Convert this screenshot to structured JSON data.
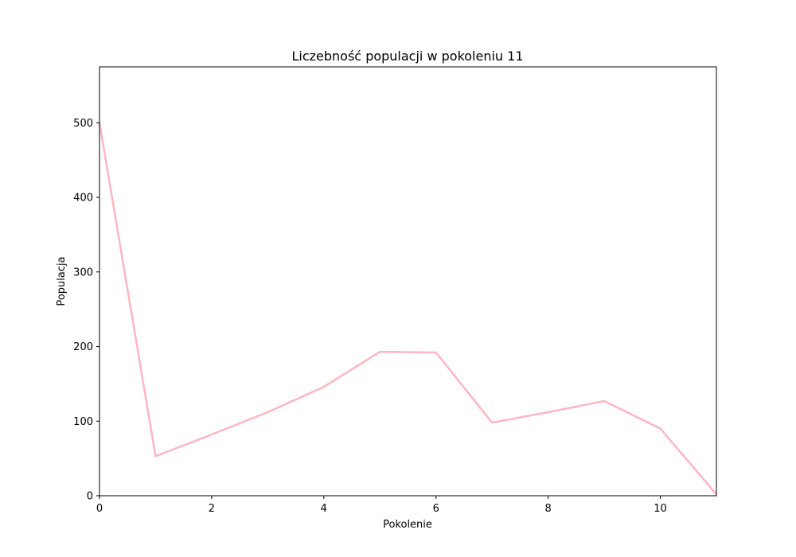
{
  "chart_data": {
    "type": "line",
    "title": "Liczebność populacji w pokoleniu 11",
    "xlabel": "Pokolenie",
    "ylabel": "Populacja",
    "xlim": [
      0,
      11
    ],
    "ylim": [
      0,
      575
    ],
    "xticks": [
      0,
      2,
      4,
      6,
      8,
      10
    ],
    "yticks": [
      0,
      100,
      200,
      300,
      400,
      500
    ],
    "grid": false,
    "series": [
      {
        "color": "#ffb6c1",
        "x": [
          0,
          1,
          2,
          3,
          4,
          5,
          6,
          7,
          8,
          9,
          10,
          11
        ],
        "y": [
          500,
          53,
          82,
          112,
          146,
          193,
          192,
          98,
          112,
          127,
          90,
          2
        ]
      }
    ]
  }
}
